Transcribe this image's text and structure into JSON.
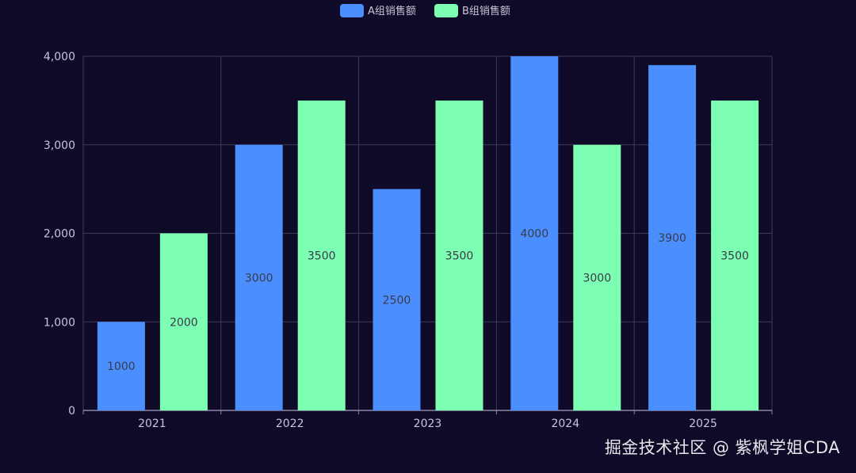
{
  "chart_data": {
    "type": "bar",
    "categories": [
      "2021",
      "2022",
      "2023",
      "2024",
      "2025"
    ],
    "series": [
      {
        "name": "A组销售额",
        "values": [
          1000,
          3000,
          2500,
          4000,
          3900
        ],
        "color": "#4a8ffd"
      },
      {
        "name": "B组销售额",
        "values": [
          2000,
          3500,
          3500,
          3000,
          3500
        ],
        "color": "#7cffb2"
      }
    ],
    "y_ticks": [
      "0",
      "1,000",
      "2,000",
      "3,000",
      "4,000"
    ],
    "ylim": [
      0,
      4000
    ],
    "grid": true,
    "legend_position": "top-center",
    "data_labels": true
  },
  "colors": {
    "background": "#0f0a28",
    "grid": "#3c3a58",
    "axis": "#8a88a6"
  },
  "watermark": "掘金技术社区 @ 紫枫学姐CDA"
}
